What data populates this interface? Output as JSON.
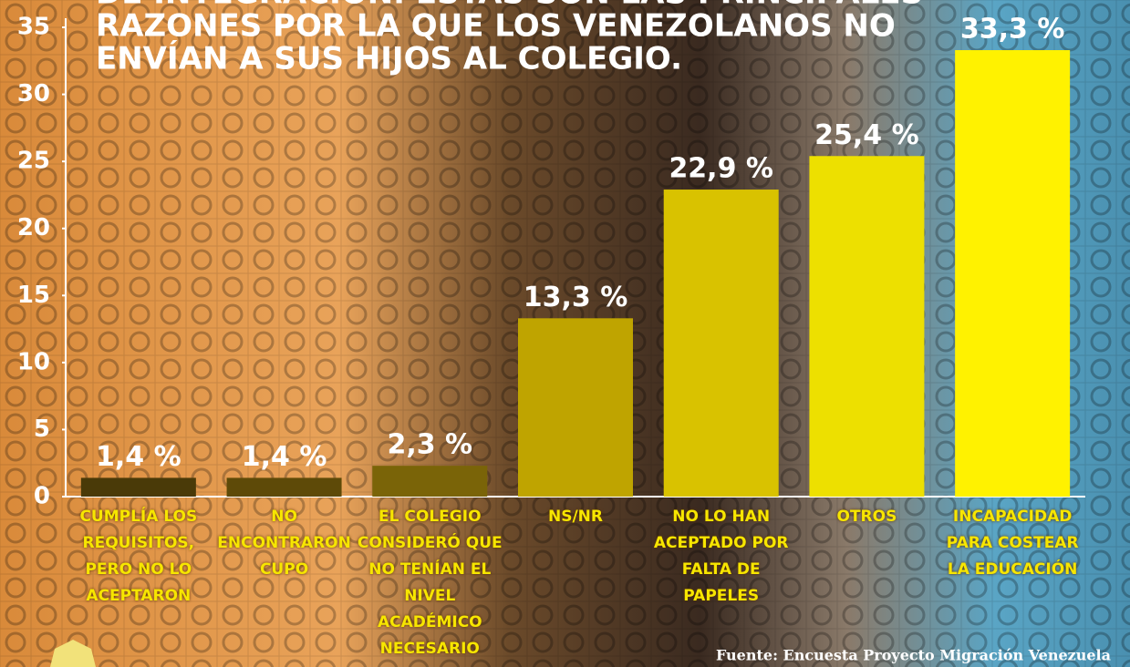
{
  "chart_data": {
    "type": "bar",
    "title_lines": [
      "DE INTEGRACIÓN. ESTAS SON LAS PRINCIPALES",
      "RAZONES POR LA QUE LOS VENEZOLANOS NO",
      "ENVÍAN A SUS HIJOS AL COLEGIO."
    ],
    "categories": [
      "CUMPLÍA LOS REQUISITOS, PERO NO LO ACEPTARON",
      "NO ENCONTRARON CUPO",
      "EL COLEGIO CONSIDERÓ QUE NO TENÍAN EL NIVEL ACADÉMICO NECESARIO",
      "NS/NR",
      "NO LO HAN ACEPTADO POR FALTA DE PAPELES",
      "OTROS",
      "INCAPACIDAD PARA COSTEAR LA EDUCACIÓN"
    ],
    "values": [
      1.4,
      1.4,
      2.3,
      13.3,
      22.9,
      25.4,
      33.3
    ],
    "value_labels": [
      "1,4 %",
      "1,4 %",
      "2,3 %",
      "13,3 %",
      "22,9 %",
      "25,4 %",
      "33,3 %"
    ],
    "colors": [
      "#4a3a08",
      "#5e4a08",
      "#7a6408",
      "#bfa400",
      "#d9c200",
      "#ede000",
      "#fff200"
    ],
    "ylim": [
      0,
      35
    ],
    "yticks": [
      0,
      5,
      10,
      15,
      20,
      25,
      30,
      35
    ],
    "source": "Fuente: Encuesta Proyecto Migración Venezuela"
  }
}
